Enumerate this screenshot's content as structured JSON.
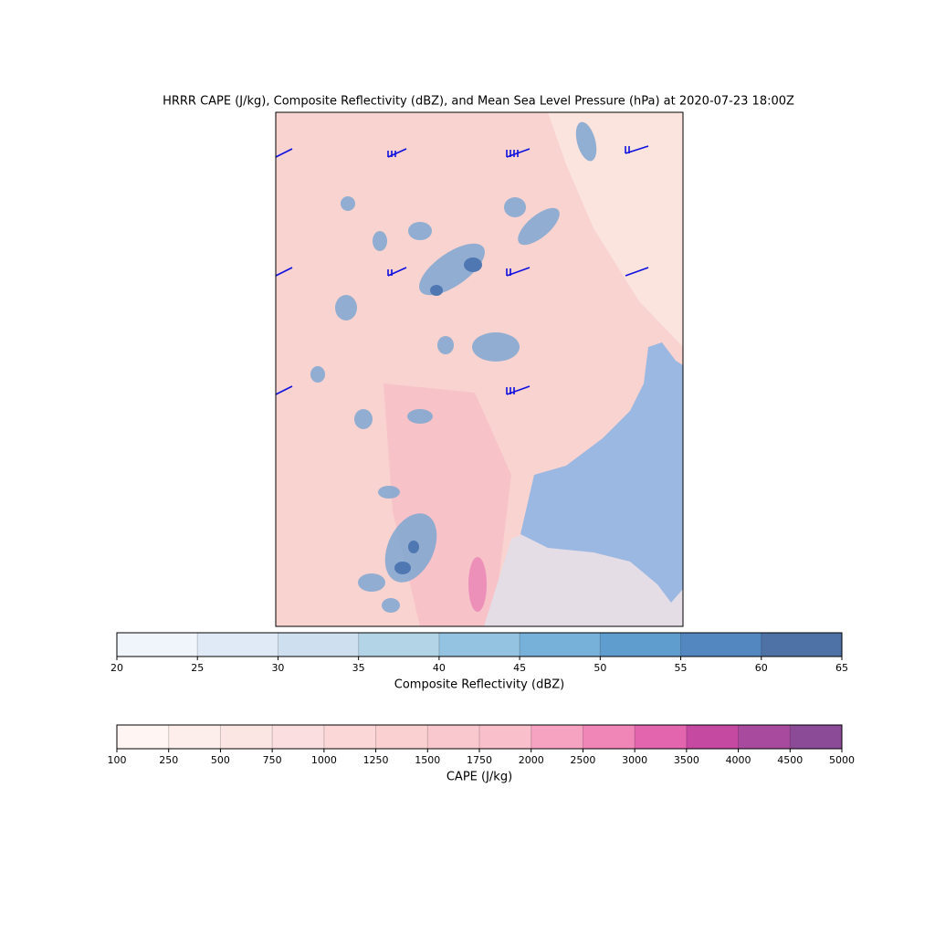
{
  "title": "HRRR CAPE (J/kg), Composite Reflectivity (dBZ), and Mean Sea Level Pressure (hPa) at 2020-07-23 18:00Z",
  "colorbars": [
    {
      "label": "Composite Reflectivity (dBZ)",
      "ticks": [
        20,
        25,
        30,
        35,
        40,
        45,
        50,
        55,
        60,
        65
      ],
      "colors": [
        "#eff5fb",
        "#dfeaf6",
        "#cedff0",
        "#b3d4e6",
        "#93c3e0",
        "#77b0d8",
        "#5f9dcf",
        "#5287c0",
        "#4f72a6"
      ]
    },
    {
      "label": "CAPE (J/kg)",
      "ticks": [
        100,
        250,
        500,
        750,
        1000,
        1250,
        1500,
        1750,
        2000,
        2500,
        3000,
        3500,
        4000,
        4500,
        5000
      ],
      "colors": [
        "#fff5f3",
        "#fdeeeb",
        "#fce6e3",
        "#fbdedf",
        "#fbd7d8",
        "#fad0d1",
        "#f9c8ce",
        "#f9bfca",
        "#f6a3c1",
        "#f085b7",
        "#e265ae",
        "#c549a0",
        "#a84b9f",
        "#8c4b97"
      ]
    }
  ]
}
